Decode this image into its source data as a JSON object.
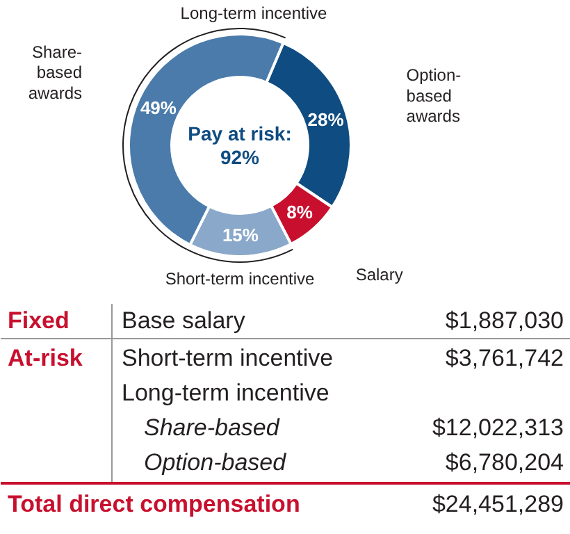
{
  "chart_data": {
    "type": "donut",
    "categories": [
      "Option-based awards",
      "Salary",
      null,
      "Share-based awards"
    ],
    "values": [
      28,
      8,
      15,
      49
    ],
    "colors": [
      "#0f4c81",
      "#c8102e",
      "#8aa8c9",
      "#4a7bab"
    ],
    "value_labels": [
      "28%",
      "8%",
      "15%",
      "49%"
    ],
    "annotations": [
      "Pay at risk: 92%",
      "Long-term incentive",
      "Short-term incentive",
      "Fixed",
      "Base salary",
      "$1,887,030",
      "At-risk",
      "Short-term incentive",
      "$3,761,742",
      "Long-term incentive",
      "Share-based",
      "$12,022,313",
      "Option-based",
      "$6,780,204",
      "Total direct compensation",
      "$24,451,289"
    ]
  }
}
